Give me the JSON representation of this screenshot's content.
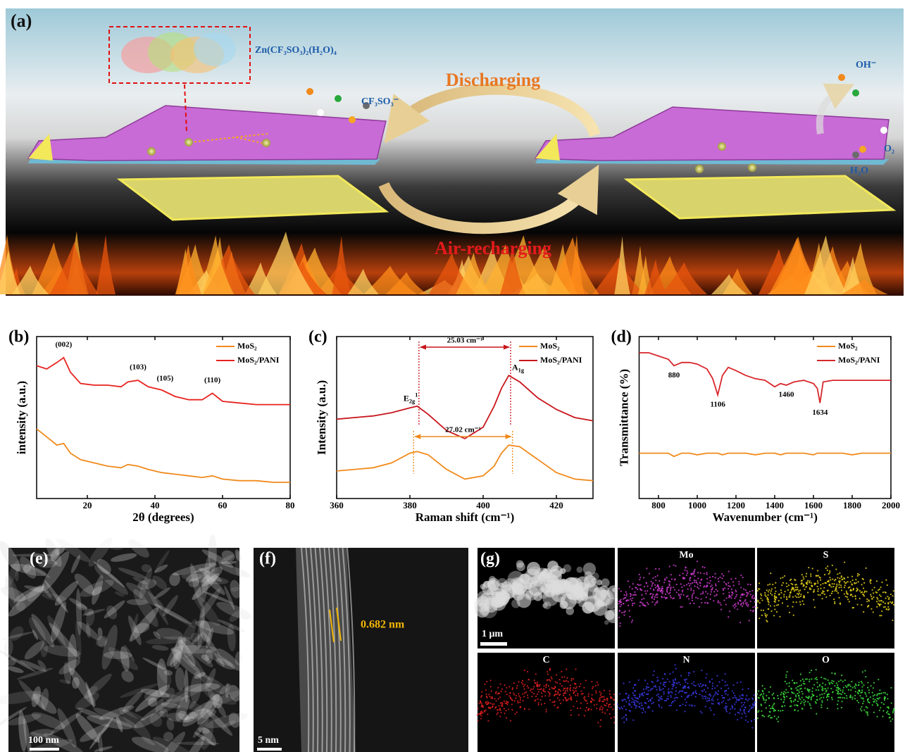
{
  "figure_a": {
    "label": "(a)",
    "complex": "Zn(CF₃SO₃)₂(H₂O)₄",
    "discharging": "Discharging",
    "recharging": "Air-recharging",
    "anion": "CF₃SO₃⁻",
    "hydroxide": "OH⁻",
    "oxygen": "O₂",
    "water": "H₂O"
  },
  "chart_data": [
    {
      "type": "line",
      "panel_label": "(b)",
      "x_label": "2θ (degrees)",
      "y_label": "intensity (a.u.)",
      "x": [
        5,
        8,
        11,
        13,
        15,
        18,
        22,
        26,
        30,
        32,
        35,
        38,
        42,
        46,
        50,
        54,
        57,
        60,
        65,
        70,
        75,
        80
      ],
      "series": [
        {
          "name": "MoS₂",
          "color": "#f08a1c",
          "values": [
            43,
            38,
            33,
            34,
            28,
            24,
            22,
            20,
            19,
            21,
            20,
            18,
            16,
            15,
            14,
            13,
            14,
            12,
            11,
            11,
            10,
            10
          ]
        },
        {
          "name": "MoS₂/PANI",
          "color": "#e8231f",
          "values": [
            82,
            80,
            84,
            87,
            78,
            71,
            70,
            70,
            69,
            72,
            73,
            69,
            67,
            63,
            61,
            61,
            65,
            60,
            59,
            58,
            58,
            58
          ]
        }
      ],
      "annotations": [
        {
          "value": 13,
          "label": "(002)"
        },
        {
          "value": 35,
          "label": "(103)"
        },
        {
          "value": 43,
          "label": "(105)"
        },
        {
          "value": 57,
          "label": "(110)"
        }
      ],
      "xlim": [
        5,
        80
      ],
      "xticks": [
        20,
        40,
        60,
        80
      ],
      "ylim": [
        0,
        100
      ],
      "legend": "upper right"
    },
    {
      "type": "line",
      "panel_label": "(c)",
      "x_label": "Raman shift (cm⁻¹)",
      "y_label": "Intensity (a.u.)",
      "x": [
        360,
        365,
        370,
        375,
        380,
        382,
        385,
        390,
        395,
        400,
        403,
        405,
        407,
        410,
        415,
        420,
        425,
        430
      ],
      "series": [
        {
          "name": "MoS₂",
          "color": "#f08a1c",
          "values": [
            17,
            18,
            19,
            22,
            28,
            29,
            27,
            18,
            12,
            14,
            20,
            28,
            33,
            32,
            24,
            16,
            12,
            11
          ],
          "peaks": [
            381,
            408.02
          ],
          "shift_label": "27.02 cm⁻¹"
        },
        {
          "name": "MoS₂/PANI",
          "color": "#c8151b",
          "values": [
            49,
            50,
            51,
            53,
            56,
            57,
            52,
            42,
            37,
            44,
            57,
            68,
            76,
            72,
            62,
            55,
            50,
            48
          ],
          "peaks": [
            382.47,
            407.5
          ],
          "shift_label": "25.03 cm⁻¹"
        }
      ],
      "modes": [
        {
          "base": "E",
          "sub": "2g",
          "sup": "1"
        },
        {
          "base": "A",
          "sub": "1g"
        }
      ],
      "xlim": [
        360,
        430
      ],
      "xticks": [
        360,
        380,
        400,
        420
      ],
      "ylim": [
        0,
        100
      ],
      "legend": "upper right"
    },
    {
      "type": "line",
      "panel_label": "(d)",
      "x_label": "Wavenumber (cm⁻¹)",
      "y_label": "Transmittance (%)",
      "x": [
        700,
        750,
        800,
        850,
        880,
        920,
        960,
        1000,
        1050,
        1080,
        1106,
        1130,
        1160,
        1200,
        1250,
        1300,
        1350,
        1400,
        1430,
        1460,
        1500,
        1550,
        1600,
        1620,
        1634,
        1650,
        1700,
        1750,
        1800,
        1850,
        1900,
        1950,
        2000
      ],
      "series": [
        {
          "name": "MoS₂",
          "color": "#f08a1c",
          "values": [
            28,
            28,
            28,
            28,
            26,
            28,
            28,
            27,
            28,
            28,
            28,
            27,
            28,
            28,
            28,
            27,
            28,
            28,
            27,
            28,
            28,
            28,
            27,
            28,
            28,
            28,
            28,
            28,
            27,
            28,
            28,
            28,
            28
          ]
        },
        {
          "name": "MoS₂/PANI",
          "color": "#d8262b",
          "values": [
            90,
            90,
            88,
            86,
            82,
            84,
            84,
            83,
            80,
            74,
            64,
            76,
            81,
            79,
            76,
            74,
            73,
            69,
            71,
            70,
            72,
            73,
            71,
            68,
            59,
            72,
            73,
            73,
            73,
            73,
            73,
            73,
            73
          ]
        }
      ],
      "annotations": [
        {
          "value": 880,
          "label": "880"
        },
        {
          "value": 1106,
          "label": "1106"
        },
        {
          "value": 1460,
          "label": "1460"
        },
        {
          "value": 1634,
          "label": "1634"
        }
      ],
      "xlim": [
        700,
        2000
      ],
      "xticks": [
        800,
        1000,
        1200,
        1400,
        1600,
        1800,
        2000
      ],
      "ylim": [
        0,
        100
      ],
      "legend": "upper right"
    }
  ],
  "figure_e": {
    "label": "(e)",
    "scale": "100 nm"
  },
  "figure_f": {
    "label": "(f)",
    "scale": "5 nm",
    "spacing": "0.682 nm"
  },
  "figure_g": {
    "label": "(g)",
    "scale": "1 μm",
    "elements": [
      "Mo",
      "S",
      "C",
      "N",
      "O"
    ]
  }
}
